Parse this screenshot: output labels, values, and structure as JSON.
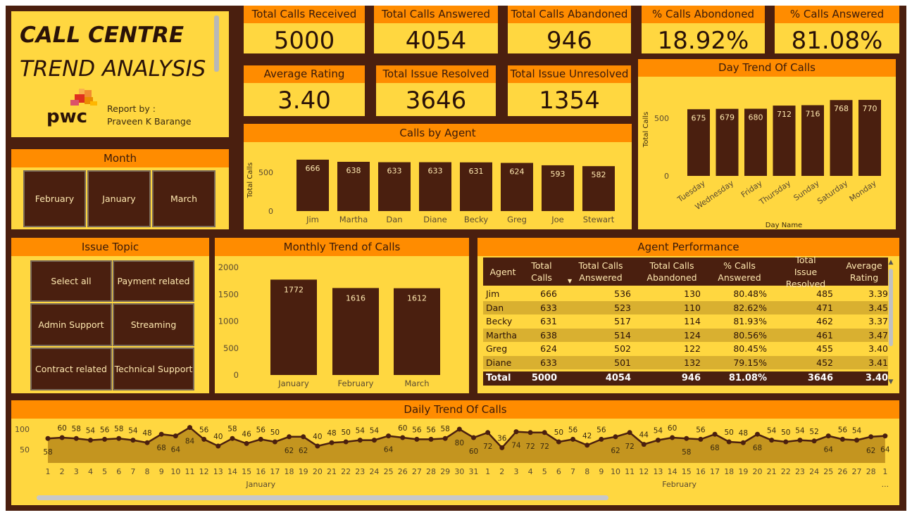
{
  "header": {
    "title_line1": "CALL CENTRE",
    "title_line2": "TREND ANALYSIS",
    "logo_text": "pwc",
    "report_by_label": "Report by :",
    "report_author": "Praveen K Barange"
  },
  "kpis": [
    {
      "label": "Total Calls Received",
      "value": "5000"
    },
    {
      "label": "Total Calls Answered",
      "value": "4054"
    },
    {
      "label": "Total Calls Abandoned",
      "value": "946"
    },
    {
      "label": "% Calls Abondoned",
      "value": "18.92%"
    },
    {
      "label": "% Calls Answered",
      "value": "81.08%"
    },
    {
      "label": "Average Rating",
      "value": "3.40"
    },
    {
      "label": "Total Issue Resolved",
      "value": "3646"
    },
    {
      "label": "Total Issue Unresolved",
      "value": "1354"
    }
  ],
  "month_slicer": {
    "title": "Month",
    "options": [
      "February",
      "January",
      "March"
    ]
  },
  "issue_slicer": {
    "title": "Issue Topic",
    "options": [
      "Select all",
      "Payment related",
      "Admin Support",
      "Streaming",
      "Contract related",
      "Technical Support"
    ]
  },
  "colors": {
    "bar": "#4a1f0f",
    "header": "#ff8c00",
    "panel": "#ffd740",
    "frame": "#4a1f0f"
  },
  "chart_data": [
    {
      "id": "calls_by_agent",
      "type": "bar",
      "title": "Calls by Agent",
      "ylabel": "Total Calls",
      "xlabel": "",
      "categories": [
        "Jim",
        "Martha",
        "Dan",
        "Diane",
        "Becky",
        "Greg",
        "Joe",
        "Stewart"
      ],
      "values": [
        666,
        638,
        633,
        633,
        631,
        624,
        593,
        582
      ],
      "yticks": [
        "0",
        "500"
      ],
      "ylim": [
        0,
        720
      ]
    },
    {
      "id": "day_trend",
      "type": "bar",
      "title": "Day Trend Of Calls",
      "ylabel": "Total Calls",
      "xlabel": "Day Name",
      "categories": [
        "Tuesday",
        "Wednesday",
        "Friday",
        "Thursday",
        "Sunday",
        "Saturday",
        "Monday"
      ],
      "values": [
        675,
        679,
        680,
        712,
        716,
        768,
        770
      ],
      "yticks": [
        "0",
        "500"
      ],
      "ylim": [
        0,
        880
      ]
    },
    {
      "id": "monthly_trend",
      "type": "bar",
      "title": "Monthly Trend of Calls",
      "categories": [
        "January",
        "February",
        "March"
      ],
      "values": [
        1772,
        1616,
        1612
      ],
      "yticks": [
        "0",
        "500",
        "1000",
        "1500",
        "2000"
      ],
      "ylim": [
        0,
        2000
      ]
    },
    {
      "id": "daily_trend",
      "type": "area",
      "title": "Daily Trend Of Calls",
      "yticks": [
        "50",
        "100"
      ],
      "ylim": [
        0,
        100
      ],
      "x_labels": [
        "1",
        "2",
        "3",
        "4",
        "5",
        "6",
        "7",
        "8",
        "9",
        "10",
        "11",
        "12",
        "13",
        "14",
        "15",
        "16",
        "17",
        "18",
        "19",
        "20",
        "21",
        "22",
        "23",
        "24",
        "25",
        "26",
        "27",
        "28",
        "29",
        "30",
        "31",
        "1",
        "2",
        "3",
        "4",
        "5",
        "6",
        "7",
        "8",
        "9",
        "10",
        "11",
        "12",
        "13",
        "14",
        "15",
        "16",
        "17",
        "18",
        "19",
        "20",
        "21",
        "22",
        "23",
        "24",
        "25",
        "26",
        "27",
        "28",
        "1"
      ],
      "month_labels": [
        "January",
        "February"
      ],
      "trailing_label": "...",
      "values": [
        58,
        60,
        58,
        54,
        56,
        58,
        54,
        48,
        68,
        64,
        84,
        56,
        40,
        58,
        46,
        56,
        50,
        62,
        62,
        40,
        48,
        50,
        54,
        54,
        64,
        60,
        56,
        56,
        58,
        80,
        60,
        72,
        36,
        74,
        72,
        72,
        50,
        56,
        42,
        56,
        62,
        72,
        44,
        54,
        60,
        58,
        56,
        68,
        50,
        48,
        68,
        54,
        50,
        54,
        52,
        64,
        56,
        54,
        62,
        64
      ]
    }
  ],
  "agent_table": {
    "title": "Agent Performance",
    "columns": [
      "Agent",
      "Total Calls",
      "Total Calls Answered",
      "Total Calls Abandoned",
      "% Calls Answered",
      "Total Issue Resolved",
      "Average Rating"
    ],
    "rows": [
      [
        "Jim",
        "666",
        "536",
        "130",
        "80.48%",
        "485",
        "3.39"
      ],
      [
        "Dan",
        "633",
        "523",
        "110",
        "82.62%",
        "471",
        "3.45"
      ],
      [
        "Becky",
        "631",
        "517",
        "114",
        "81.93%",
        "462",
        "3.37"
      ],
      [
        "Martha",
        "638",
        "514",
        "124",
        "80.56%",
        "461",
        "3.47"
      ],
      [
        "Greg",
        "624",
        "502",
        "122",
        "80.45%",
        "455",
        "3.40"
      ],
      [
        "Diane",
        "633",
        "501",
        "132",
        "79.15%",
        "452",
        "3.41"
      ]
    ],
    "total": [
      "Total",
      "5000",
      "4054",
      "946",
      "81.08%",
      "3646",
      "3.40"
    ]
  }
}
